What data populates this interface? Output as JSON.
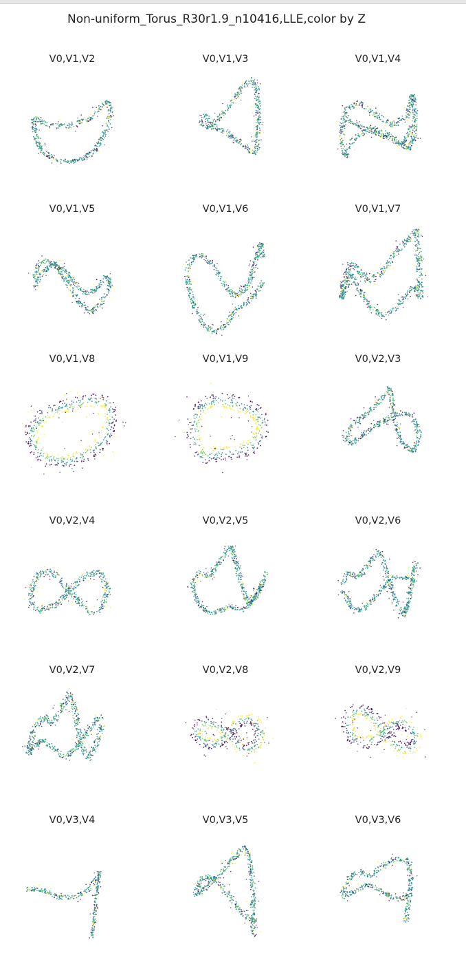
{
  "figure": {
    "title": "Non-uniform_Torus_R30r1.9_n10416,LLE,color by Z",
    "colormap": [
      "#440154",
      "#3b528b",
      "#21918c",
      "#5ec962",
      "#fde725"
    ]
  },
  "chart_data": [
    {
      "type": "scatter",
      "title": "V0,V1,V2",
      "x_var": "V0",
      "y_var": "V1",
      "color_var": "V2",
      "shape": "crescent",
      "grid": false,
      "axes": "off"
    },
    {
      "type": "scatter",
      "title": "V0,V1,V3",
      "x_var": "V0",
      "y_var": "V1",
      "color_var": "V3",
      "shape": "fig8-diagonal",
      "grid": false,
      "axes": "off"
    },
    {
      "type": "scatter",
      "title": "V0,V1,V4",
      "x_var": "V0",
      "y_var": "V1",
      "color_var": "V4",
      "shape": "twisted-band",
      "grid": false,
      "axes": "off"
    },
    {
      "type": "scatter",
      "title": "V0,V1,V5",
      "x_var": "V0",
      "y_var": "V1",
      "color_var": "V5",
      "shape": "double-wave",
      "grid": false,
      "axes": "off"
    },
    {
      "type": "scatter",
      "title": "V0,V1,V6",
      "x_var": "V0",
      "y_var": "V1",
      "color_var": "V6",
      "shape": "double-wave-tall",
      "grid": false,
      "axes": "off"
    },
    {
      "type": "scatter",
      "title": "V0,V1,V7",
      "x_var": "V0",
      "y_var": "V1",
      "color_var": "V7",
      "shape": "zigzag",
      "grid": false,
      "axes": "off"
    },
    {
      "type": "scatter",
      "title": "V0,V1,V8",
      "x_var": "V0",
      "y_var": "V1",
      "color_var": "V8",
      "shape": "gradient-band",
      "grid": false,
      "axes": "off"
    },
    {
      "type": "scatter",
      "title": "V0,V1,V9",
      "x_var": "V0",
      "y_var": "V1",
      "color_var": "V9",
      "shape": "gradient-ring",
      "grid": false,
      "axes": "off"
    },
    {
      "type": "scatter",
      "title": "V0,V2,V3",
      "x_var": "V0",
      "y_var": "V2",
      "color_var": "V3",
      "shape": "loop-petal",
      "grid": false,
      "axes": "off"
    },
    {
      "type": "scatter",
      "title": "V0,V2,V4",
      "x_var": "V0",
      "y_var": "V2",
      "color_var": "V4",
      "shape": "infinity",
      "grid": false,
      "axes": "off"
    },
    {
      "type": "scatter",
      "title": "V0,V2,V5",
      "x_var": "V0",
      "y_var": "V2",
      "color_var": "V5",
      "shape": "m-wave",
      "grid": false,
      "axes": "off"
    },
    {
      "type": "scatter",
      "title": "V0,V2,V6",
      "x_var": "V0",
      "y_var": "V2",
      "color_var": "V6",
      "shape": "wave-loop",
      "grid": false,
      "axes": "off"
    },
    {
      "type": "scatter",
      "title": "V0,V2,V7",
      "x_var": "V0",
      "y_var": "V2",
      "color_var": "V7",
      "shape": "m-wave-wide",
      "grid": false,
      "axes": "off"
    },
    {
      "type": "scatter",
      "title": "V0,V2,V8",
      "x_var": "V0",
      "y_var": "V2",
      "color_var": "V8",
      "shape": "gradient-infinity",
      "grid": false,
      "axes": "off"
    },
    {
      "type": "scatter",
      "title": "V0,V2,V9",
      "x_var": "V0",
      "y_var": "V2",
      "color_var": "V9",
      "shape": "gradient-infinity-2",
      "grid": false,
      "axes": "off"
    },
    {
      "type": "scatter",
      "title": "V0,V3,V4",
      "x_var": "V0",
      "y_var": "V3",
      "color_var": "V4",
      "shape": "hook",
      "grid": false,
      "axes": "off"
    },
    {
      "type": "scatter",
      "title": "V0,V3,V5",
      "x_var": "V0",
      "y_var": "V3",
      "color_var": "V5",
      "shape": "loop-diagonal",
      "grid": false,
      "axes": "off"
    },
    {
      "type": "scatter",
      "title": "V0,V3,V6",
      "x_var": "V0",
      "y_var": "V3",
      "color_var": "V6",
      "shape": "loop-twist",
      "grid": false,
      "axes": "off"
    }
  ]
}
